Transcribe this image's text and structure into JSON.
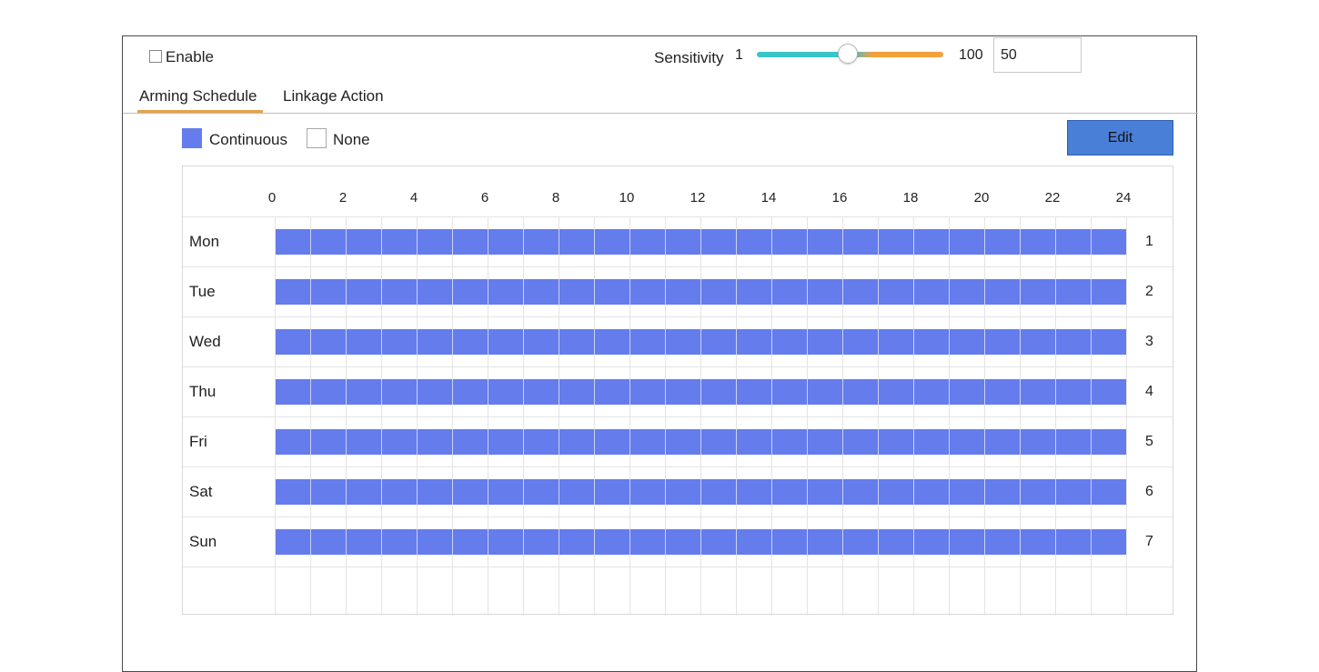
{
  "enable": {
    "label": "Enable",
    "checked": false
  },
  "sensitivity": {
    "label": "Sensitivity",
    "min_label": "1",
    "max_label": "100",
    "value": "50"
  },
  "tabs": [
    {
      "label": "Arming Schedule",
      "active": true
    },
    {
      "label": "Linkage Action",
      "active": false
    }
  ],
  "legend": {
    "continuous_label": "Continuous",
    "none_label": "None",
    "continuous_color": "#657ced"
  },
  "edit_label": "Edit",
  "schedule": {
    "hour_labels": [
      "0",
      "2",
      "4",
      "6",
      "8",
      "10",
      "12",
      "14",
      "16",
      "18",
      "20",
      "22",
      "24"
    ],
    "days": [
      {
        "label": "Mon",
        "num": "1",
        "mode": "Continuous"
      },
      {
        "label": "Tue",
        "num": "2",
        "mode": "Continuous"
      },
      {
        "label": "Wed",
        "num": "3",
        "mode": "Continuous"
      },
      {
        "label": "Thu",
        "num": "4",
        "mode": "Continuous"
      },
      {
        "label": "Fri",
        "num": "5",
        "mode": "Continuous"
      },
      {
        "label": "Sat",
        "num": "6",
        "mode": "Continuous"
      },
      {
        "label": "Sun",
        "num": "7",
        "mode": "Continuous"
      }
    ]
  }
}
